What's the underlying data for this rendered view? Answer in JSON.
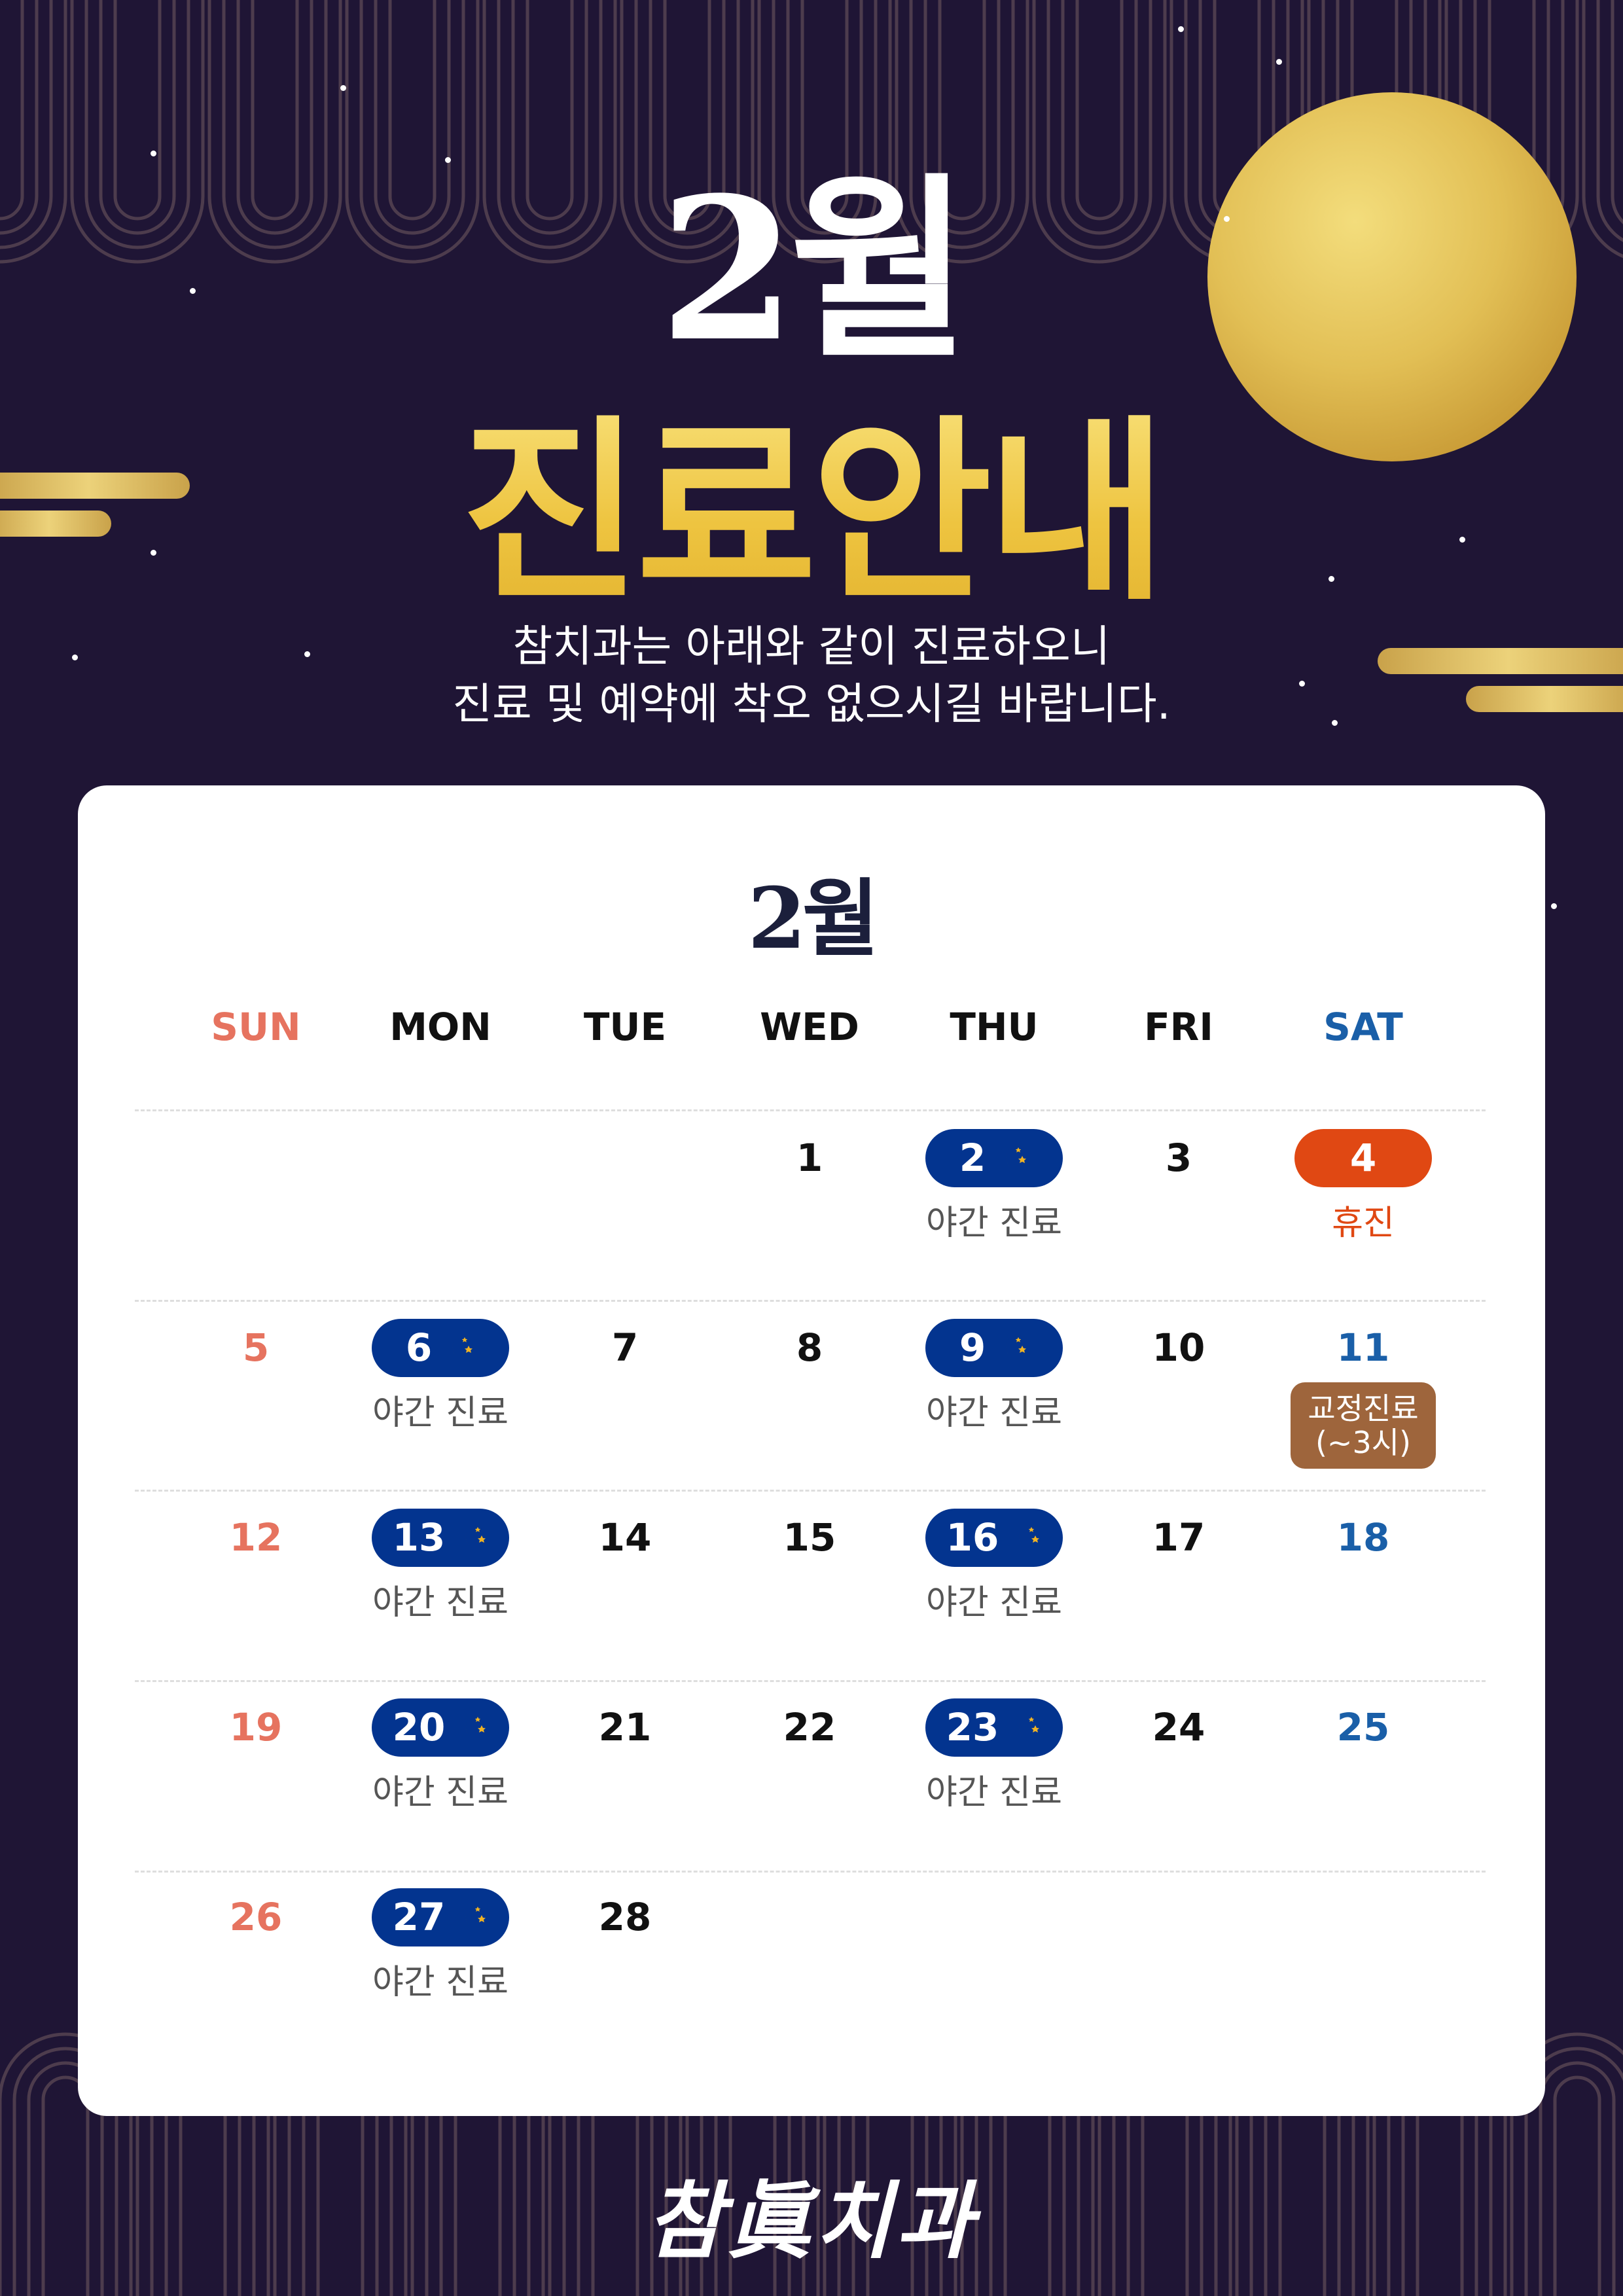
{
  "header": {
    "month_title": "2월",
    "main_title": "진료안내",
    "subtitle_lines": [
      "참치과는 아래와 같이 진료하오니",
      "진료 및 예약에 착오 없으시길 바랍니다."
    ]
  },
  "colors": {
    "background": "#1f1535",
    "gold": "#eec440",
    "night_pill": "#03348f",
    "closed": "#e04813",
    "ortho_badge": "#9e653c",
    "sunday": "#e6735f",
    "saturday": "#1a5fa8"
  },
  "calendar": {
    "month_label": "2월",
    "weekdays": [
      "SUN",
      "MON",
      "TUE",
      "WED",
      "THU",
      "FRI",
      "SAT"
    ],
    "weeks": [
      [
        null,
        null,
        null,
        {
          "day": "1"
        },
        {
          "day": "2",
          "type": "night",
          "note": "야간 진료"
        },
        {
          "day": "3"
        },
        {
          "day": "4",
          "type": "closed",
          "note": "휴진"
        }
      ],
      [
        {
          "day": "5"
        },
        {
          "day": "6",
          "type": "night",
          "note": "야간 진료"
        },
        {
          "day": "7"
        },
        {
          "day": "8"
        },
        {
          "day": "9",
          "type": "night",
          "note": "야간 진료"
        },
        {
          "day": "10"
        },
        {
          "day": "11",
          "type": "ortho",
          "note": [
            "교정진료",
            "(~3시)"
          ]
        }
      ],
      [
        {
          "day": "12"
        },
        {
          "day": "13",
          "type": "night",
          "note": "야간 진료"
        },
        {
          "day": "14"
        },
        {
          "day": "15"
        },
        {
          "day": "16",
          "type": "night",
          "note": "야간 진료"
        },
        {
          "day": "17"
        },
        {
          "day": "18"
        }
      ],
      [
        {
          "day": "19"
        },
        {
          "day": "20",
          "type": "night",
          "note": "야간 진료"
        },
        {
          "day": "21"
        },
        {
          "day": "22"
        },
        {
          "day": "23",
          "type": "night",
          "note": "야간 진료"
        },
        {
          "day": "24"
        },
        {
          "day": "25"
        }
      ],
      [
        {
          "day": "26"
        },
        {
          "day": "27",
          "type": "night",
          "note": "야간 진료"
        },
        {
          "day": "28"
        },
        null,
        null,
        null,
        null
      ]
    ],
    "night_icon": "crescent-moon-stars-icon"
  },
  "footer": {
    "logo": "참眞치과"
  }
}
